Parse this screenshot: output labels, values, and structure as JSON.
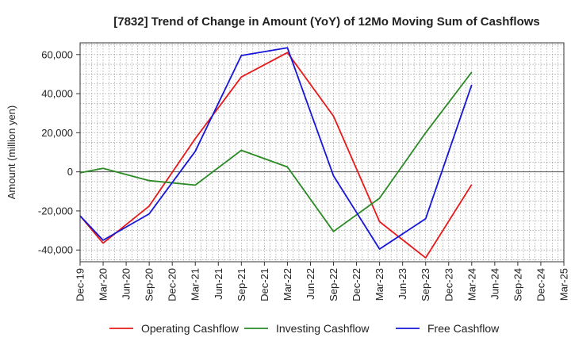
{
  "chart_data": {
    "type": "line",
    "title": "[7832]  Trend of Change in Amount (YoY) of 12Mo Moving Sum of Cashflows",
    "xlabel": "",
    "ylabel": "Amount (million yen)",
    "categories": [
      "Dec-19",
      "Mar-20",
      "Jun-20",
      "Sep-20",
      "Dec-20",
      "Mar-21",
      "Jun-21",
      "Sep-21",
      "Dec-21",
      "Mar-22",
      "Jun-22",
      "Sep-22",
      "Dec-22",
      "Mar-23",
      "Jun-23",
      "Sep-23",
      "Dec-23",
      "Mar-24",
      "Jun-24",
      "Sep-24",
      "Dec-24",
      "Mar-25"
    ],
    "ylim": [
      -46000,
      66000
    ],
    "yticks": [
      -40000,
      -20000,
      0,
      20000,
      40000,
      60000
    ],
    "ytick_labels": [
      "-40,000",
      "-20,000",
      "0",
      "20,000",
      "40,000",
      "60,000"
    ],
    "grid": true,
    "legend_position": "bottom",
    "series": [
      {
        "name": "Operating Cashflow",
        "color": "#e8191a",
        "values": [
          -22500,
          -36500,
          null,
          -17500,
          null,
          17000,
          null,
          48500,
          null,
          61000,
          null,
          28500,
          null,
          -25500,
          null,
          -44000,
          null,
          -6500,
          null,
          null,
          null,
          null
        ]
      },
      {
        "name": "Investing Cashflow",
        "color": "#2a8a24",
        "values": [
          -500,
          1800,
          null,
          -4500,
          null,
          -6800,
          null,
          11000,
          null,
          2500,
          null,
          -30500,
          null,
          -13500,
          null,
          20000,
          null,
          51000,
          null,
          null,
          null,
          null
        ]
      },
      {
        "name": "Free Cashflow",
        "color": "#1616d8",
        "values": [
          -22500,
          -35000,
          null,
          -21500,
          null,
          10500,
          null,
          59500,
          null,
          63500,
          null,
          -2000,
          null,
          -39500,
          null,
          -24000,
          null,
          44500,
          null,
          null,
          null,
          null
        ]
      }
    ]
  }
}
